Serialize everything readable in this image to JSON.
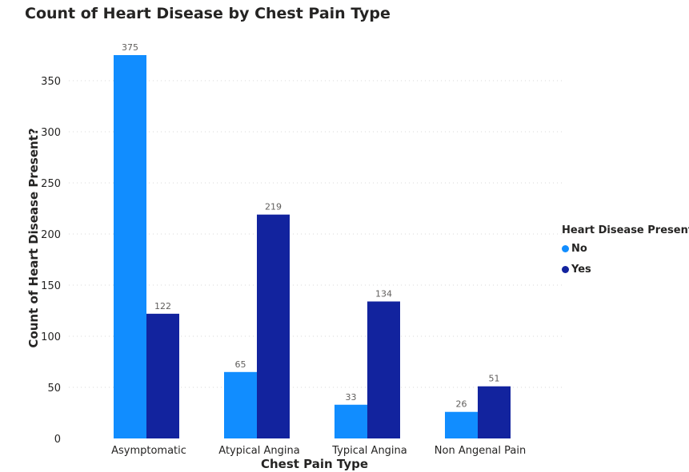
{
  "chart_data": {
    "type": "bar",
    "title": "Count of Heart Disease by Chest Pain Type",
    "xlabel": "Chest Pain Type",
    "ylabel": "Count of Heart Disease Present?",
    "categories": [
      "Asymptomatic",
      "Atypical Angina",
      "Typical Angina",
      "Non Angenal Pain"
    ],
    "series": [
      {
        "name": "No",
        "color": "#118dff",
        "values": [
          375,
          65,
          33,
          26
        ]
      },
      {
        "name": "Yes",
        "color": "#12239e",
        "values": [
          122,
          219,
          134,
          51
        ]
      }
    ],
    "ylim": [
      0,
      375
    ],
    "yticks": [
      0,
      50,
      100,
      150,
      200,
      250,
      300,
      350
    ],
    "grid": true,
    "legend": {
      "title": "Heart Disease Present?",
      "position": "right"
    }
  }
}
